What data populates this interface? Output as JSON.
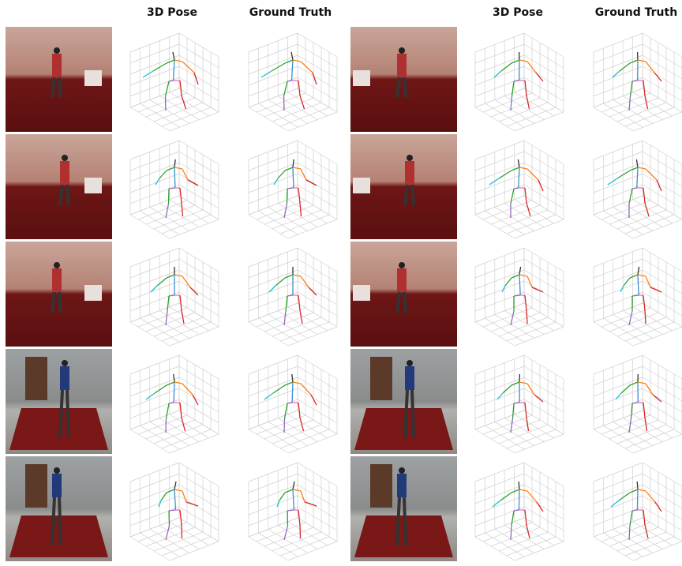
{
  "headers": [
    "3D Pose",
    "Ground Truth",
    "3D Pose",
    "Ground Truth"
  ]
}
